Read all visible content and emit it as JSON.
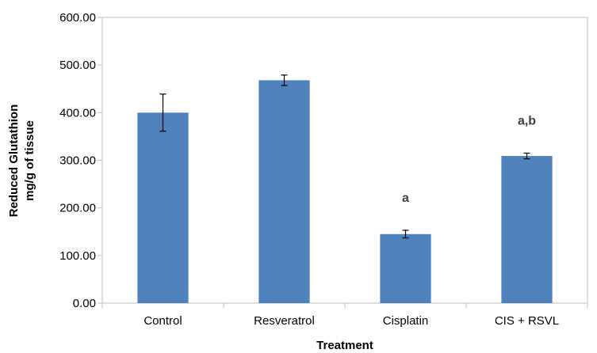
{
  "chart_data": {
    "type": "bar",
    "title": "",
    "xlabel": "Treatment",
    "ylabel_lines": [
      "Reduced Glutathion",
      "mg/g of tissue"
    ],
    "categories": [
      "Control",
      "Resveratrol",
      "Cisplatin",
      "CIS + RSVL"
    ],
    "values": [
      400,
      468,
      145,
      309
    ],
    "error": [
      39,
      11,
      8,
      6
    ],
    "annotations": [
      "",
      "",
      "a",
      "a,b"
    ],
    "ylim": [
      0,
      600
    ],
    "yticks": [
      0,
      100,
      200,
      300,
      400,
      500,
      600
    ],
    "ytick_labels": [
      "0.00",
      "100.00",
      "200.00",
      "300.00",
      "400.00",
      "500.00",
      "600.00"
    ],
    "grid": false,
    "legend": "none",
    "bar_color": "#4F81BD"
  }
}
